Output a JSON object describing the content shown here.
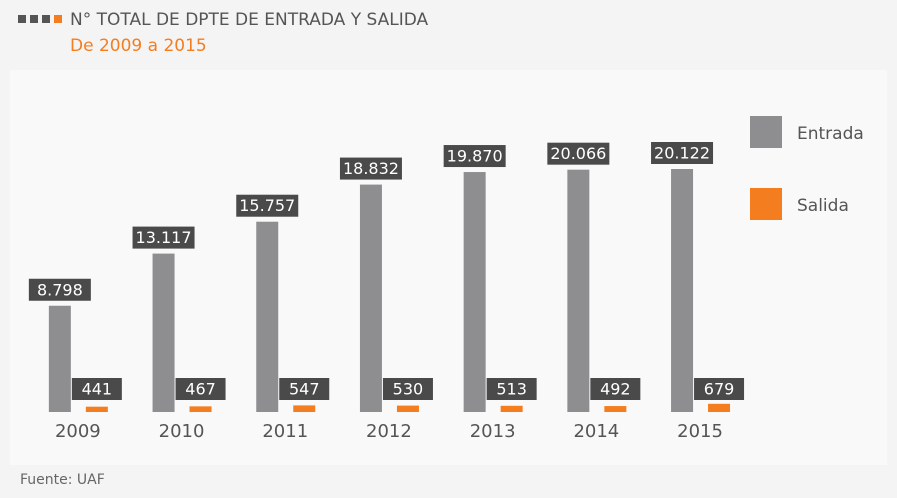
{
  "chart_data": {
    "type": "bar",
    "title": "N° TOTAL DE DPTE DE ENTRADA Y SALIDA",
    "subtitle": "De 2009 a 2015",
    "source": "Fuente: UAF",
    "categories": [
      "2009",
      "2010",
      "2011",
      "2012",
      "2013",
      "2014",
      "2015"
    ],
    "series": [
      {
        "name": "Entrada",
        "color": "#8e8e91",
        "values": [
          8798,
          13117,
          15757,
          18832,
          19870,
          20066,
          20122
        ],
        "value_labels": [
          "8.798",
          "13.117",
          "15.757",
          "18.832",
          "19.870",
          "20.066",
          "20.122"
        ]
      },
      {
        "name": "Salida",
        "color": "#f47d20",
        "values": [
          441,
          467,
          547,
          530,
          513,
          492,
          679
        ]
      }
    ],
    "legend": "right"
  }
}
